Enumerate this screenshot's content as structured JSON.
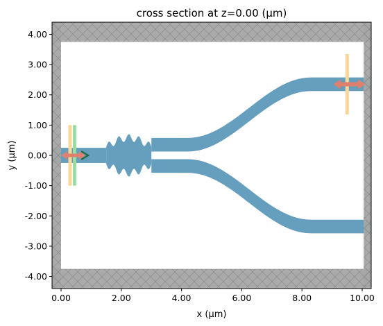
{
  "chart_data": {
    "type": "cross-section",
    "title": "cross section at z=0.00 (μm)",
    "xlabel": "x (μm)",
    "ylabel": "y (μm)",
    "xlim": [
      -0.3,
      10.3
    ],
    "ylim": [
      -4.4,
      4.4
    ],
    "xticks": [
      0.0,
      2.0,
      4.0,
      6.0,
      8.0,
      10.0
    ],
    "xtick_labels": [
      "0.00",
      "2.00",
      "4.00",
      "6.00",
      "8.00",
      "10.00"
    ],
    "yticks": [
      4.0,
      3.0,
      2.0,
      1.0,
      0.0,
      -1.0,
      -2.0,
      -3.0,
      -4.0
    ],
    "ytick_labels": [
      "4.00",
      "3.00",
      "2.00",
      "1.00",
      "0.00",
      "-1.00",
      "-2.00",
      "-3.00",
      "-4.00"
    ],
    "grid": false,
    "colors": {
      "pml": "#a6a6a6",
      "waveguide": "#669ebd",
      "source_arrow": "#e07f6b",
      "monitor_orange": "#f9d79a",
      "monitor_green": "#98dea0",
      "direction_arrow": "#1e6b45"
    },
    "pml_regions": [
      {
        "x": [
          -0.3,
          10.3
        ],
        "y": [
          3.75,
          4.4
        ]
      },
      {
        "x": [
          -0.3,
          10.3
        ],
        "y": [
          -4.4,
          -3.75
        ]
      },
      {
        "x": [
          -0.3,
          0.0
        ],
        "y": [
          -4.4,
          4.4
        ]
      },
      {
        "x": [
          10.05,
          10.3
        ],
        "y": [
          -4.4,
          4.4
        ]
      }
    ],
    "waveguide": {
      "input": {
        "x": [
          -0.3,
          1.5
        ],
        "y": [
          -0.25,
          0.25
        ]
      },
      "mmi": {
        "x": [
          1.5,
          3.0
        ],
        "y": [
          -0.65,
          0.65
        ]
      },
      "output_arms": [
        {
          "x_start": 3.0,
          "x_end": 10.3,
          "y_start": 0.35,
          "y_end": 2.35,
          "bend_x": [
            4.2,
            8.3
          ],
          "width": 0.45
        },
        {
          "x_start": 3.0,
          "x_end": 10.3,
          "y_start": -0.35,
          "y_end": -2.35,
          "bend_x": [
            4.2,
            8.3
          ],
          "width": 0.45
        }
      ]
    },
    "source": {
      "x": 0.3,
      "y_range": [
        -1.0,
        1.0
      ],
      "arrow": {
        "x_from": 0.0,
        "x_to": 0.8,
        "y": 0.0
      }
    },
    "monitors": [
      {
        "x": 0.45,
        "y_range": [
          -1.0,
          1.0
        ],
        "kind": "green"
      },
      {
        "x": 9.5,
        "y_range": [
          1.35,
          3.35
        ],
        "kind": "orange",
        "arrow_y": 2.35
      }
    ]
  }
}
